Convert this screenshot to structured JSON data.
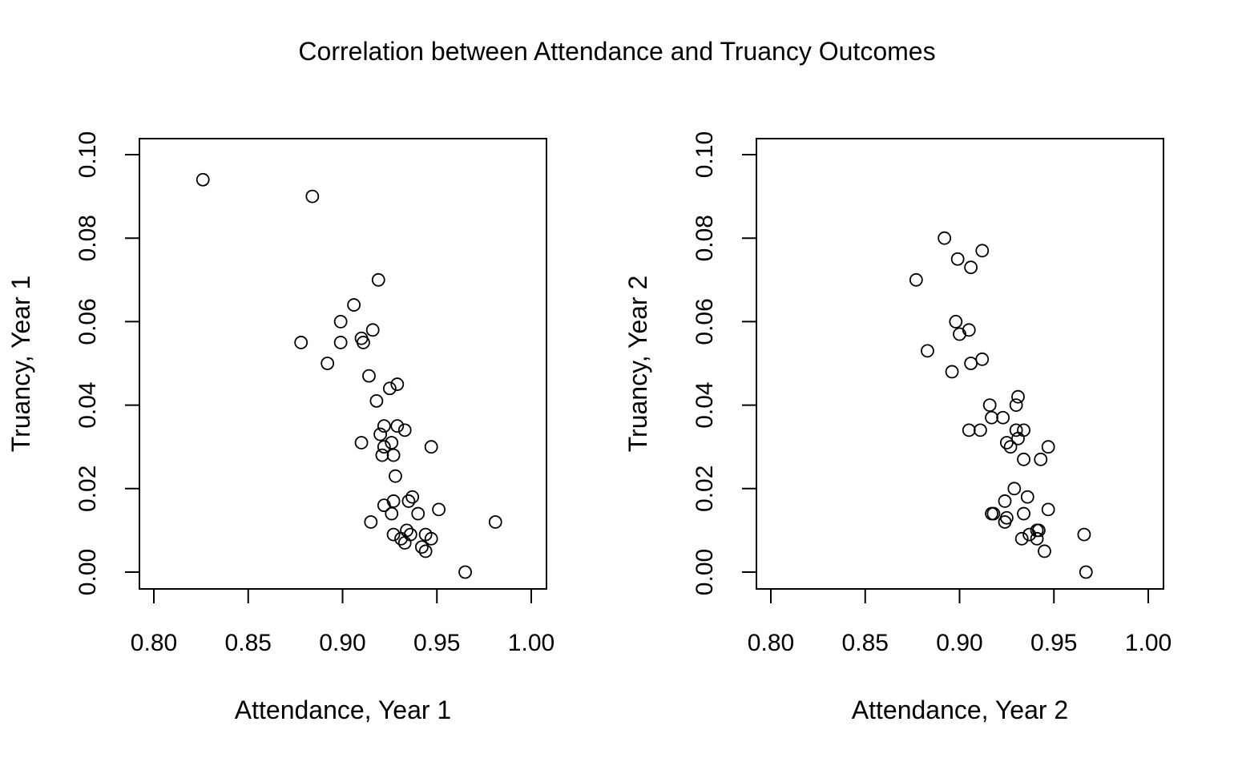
{
  "figure": {
    "title": "Correlation between Attendance and Truancy Outcomes"
  },
  "chart_data": [
    {
      "type": "scatter",
      "title": "",
      "xlabel": "Attendance, Year 1",
      "ylabel": "Truancy, Year 1",
      "xlim": [
        0.8,
        1.0
      ],
      "ylim": [
        0.0,
        0.1
      ],
      "xticks": [
        0.8,
        0.85,
        0.9,
        0.95,
        1.0
      ],
      "xtick_labels": [
        "0.80",
        "0.85",
        "0.90",
        "0.95",
        "1.00"
      ],
      "yticks": [
        0.0,
        0.02,
        0.04,
        0.06,
        0.08,
        0.1
      ],
      "ytick_labels": [
        "0.00",
        "0.02",
        "0.04",
        "0.06",
        "0.08",
        "0.10"
      ],
      "grid": false,
      "marker": "open-circle",
      "points": [
        [
          0.826,
          0.094
        ],
        [
          0.884,
          0.09
        ],
        [
          0.919,
          0.07
        ],
        [
          0.906,
          0.064
        ],
        [
          0.899,
          0.06
        ],
        [
          0.916,
          0.058
        ],
        [
          0.878,
          0.055
        ],
        [
          0.899,
          0.055
        ],
        [
          0.91,
          0.056
        ],
        [
          0.911,
          0.055
        ],
        [
          0.892,
          0.05
        ],
        [
          0.914,
          0.047
        ],
        [
          0.925,
          0.044
        ],
        [
          0.929,
          0.045
        ],
        [
          0.918,
          0.041
        ],
        [
          0.922,
          0.035
        ],
        [
          0.929,
          0.035
        ],
        [
          0.933,
          0.034
        ],
        [
          0.92,
          0.033
        ],
        [
          0.926,
          0.031
        ],
        [
          0.91,
          0.031
        ],
        [
          0.922,
          0.03
        ],
        [
          0.947,
          0.03
        ],
        [
          0.921,
          0.028
        ],
        [
          0.927,
          0.028
        ],
        [
          0.928,
          0.023
        ],
        [
          0.937,
          0.018
        ],
        [
          0.935,
          0.017
        ],
        [
          0.927,
          0.017
        ],
        [
          0.922,
          0.016
        ],
        [
          0.951,
          0.015
        ],
        [
          0.926,
          0.014
        ],
        [
          0.94,
          0.014
        ],
        [
          0.915,
          0.012
        ],
        [
          0.981,
          0.012
        ],
        [
          0.934,
          0.01
        ],
        [
          0.927,
          0.009
        ],
        [
          0.936,
          0.009
        ],
        [
          0.944,
          0.009
        ],
        [
          0.947,
          0.008
        ],
        [
          0.931,
          0.008
        ],
        [
          0.933,
          0.007
        ],
        [
          0.942,
          0.006
        ],
        [
          0.944,
          0.005
        ],
        [
          0.965,
          0.0
        ]
      ]
    },
    {
      "type": "scatter",
      "title": "",
      "xlabel": "Attendance, Year 2",
      "ylabel": "Truancy, Year 2",
      "xlim": [
        0.8,
        1.0
      ],
      "ylim": [
        0.0,
        0.1
      ],
      "xticks": [
        0.8,
        0.85,
        0.9,
        0.95,
        1.0
      ],
      "xtick_labels": [
        "0.80",
        "0.85",
        "0.90",
        "0.95",
        "1.00"
      ],
      "yticks": [
        0.0,
        0.02,
        0.04,
        0.06,
        0.08,
        0.1
      ],
      "ytick_labels": [
        "0.00",
        "0.02",
        "0.04",
        "0.06",
        "0.08",
        "0.10"
      ],
      "grid": false,
      "marker": "open-circle",
      "points": [
        [
          0.892,
          0.08
        ],
        [
          0.912,
          0.077
        ],
        [
          0.899,
          0.075
        ],
        [
          0.906,
          0.073
        ],
        [
          0.877,
          0.07
        ],
        [
          0.898,
          0.06
        ],
        [
          0.905,
          0.058
        ],
        [
          0.9,
          0.057
        ],
        [
          0.883,
          0.053
        ],
        [
          0.912,
          0.051
        ],
        [
          0.906,
          0.05
        ],
        [
          0.896,
          0.048
        ],
        [
          0.931,
          0.042
        ],
        [
          0.916,
          0.04
        ],
        [
          0.93,
          0.04
        ],
        [
          0.917,
          0.037
        ],
        [
          0.923,
          0.037
        ],
        [
          0.905,
          0.034
        ],
        [
          0.911,
          0.034
        ],
        [
          0.93,
          0.034
        ],
        [
          0.934,
          0.034
        ],
        [
          0.931,
          0.032
        ],
        [
          0.925,
          0.031
        ],
        [
          0.927,
          0.03
        ],
        [
          0.947,
          0.03
        ],
        [
          0.934,
          0.027
        ],
        [
          0.943,
          0.027
        ],
        [
          0.929,
          0.02
        ],
        [
          0.936,
          0.018
        ],
        [
          0.924,
          0.017
        ],
        [
          0.947,
          0.015
        ],
        [
          0.917,
          0.014
        ],
        [
          0.918,
          0.014
        ],
        [
          0.934,
          0.014
        ],
        [
          0.925,
          0.013
        ],
        [
          0.924,
          0.012
        ],
        [
          0.941,
          0.01
        ],
        [
          0.942,
          0.01
        ],
        [
          0.937,
          0.009
        ],
        [
          0.941,
          0.008
        ],
        [
          0.966,
          0.009
        ],
        [
          0.933,
          0.008
        ],
        [
          0.945,
          0.005
        ],
        [
          0.967,
          0.0
        ]
      ]
    }
  ]
}
